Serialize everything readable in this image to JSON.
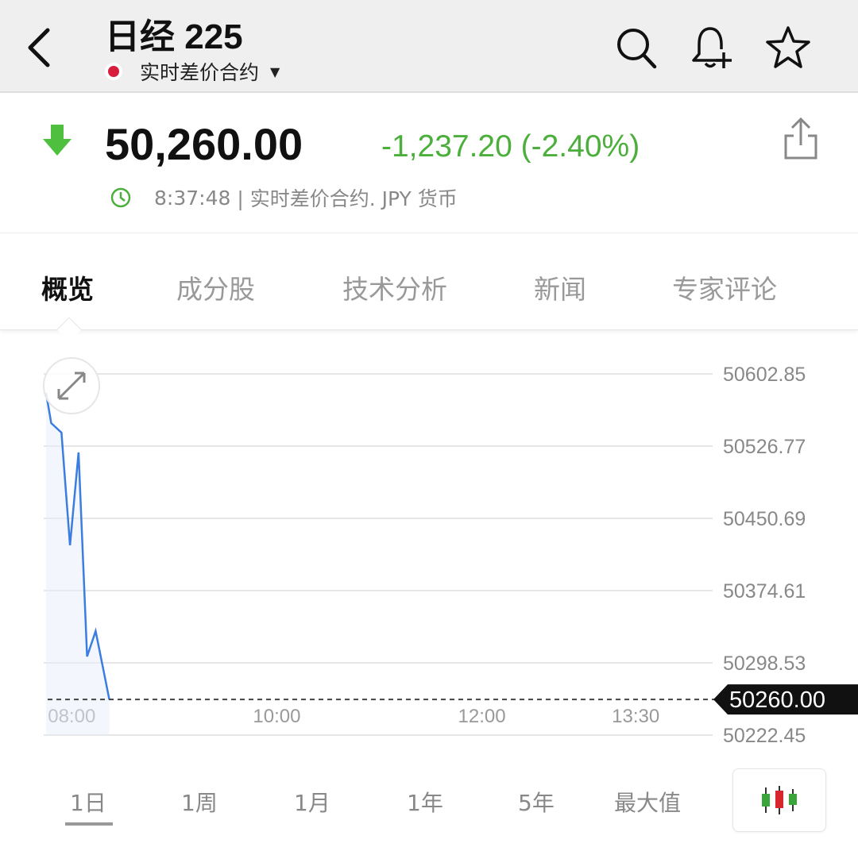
{
  "header": {
    "title": "日经 225",
    "subtitle": "实时差价合约",
    "back_icon": "chevron-left-icon",
    "icons": [
      "search-icon",
      "bell-plus-icon",
      "star-icon"
    ]
  },
  "quote": {
    "price": "50,260.00",
    "change": "-1,237.20 (-2.40%)",
    "direction": "down",
    "meta_time": "8:37:48",
    "meta_text": "| 实时差价合约. JPY 货币",
    "up_down_color": "#4caf3c"
  },
  "tabs": [
    {
      "label": "概览",
      "active": true
    },
    {
      "label": "成分股"
    },
    {
      "label": "技术分析"
    },
    {
      "label": "新闻"
    },
    {
      "label": "专家评论"
    }
  ],
  "chart_data": {
    "type": "line",
    "x": [
      "07:45",
      "07:48",
      "07:54",
      "07:59",
      "08:04",
      "08:09",
      "08:14",
      "08:22"
    ],
    "values": [
      50582.8,
      50551.0,
      50541.0,
      50422.3,
      50520.1,
      50305.2,
      50332.0,
      50260.0
    ],
    "xlim": [
      "07:45",
      "14:15"
    ],
    "ylim": [
      50222.45,
      50602.85
    ],
    "yticks": [
      "50602.85",
      "50526.77",
      "50450.69",
      "50374.61",
      "50298.53",
      "50222.45"
    ],
    "xticks": [
      {
        "label": "08:00",
        "t": "08:00"
      },
      {
        "label": "10:00",
        "t": "10:00"
      },
      {
        "label": "12:00",
        "t": "12:00"
      },
      {
        "label": "13:30",
        "t": "13:30"
      }
    ],
    "current_label": "50260.00",
    "current_value": 50260.0,
    "line_color": "#3b7de0",
    "grid": true
  },
  "ranges": [
    {
      "label": "1日",
      "active": true
    },
    {
      "label": "1周"
    },
    {
      "label": "1月"
    },
    {
      "label": "1年"
    },
    {
      "label": "5年"
    },
    {
      "label": "最大值"
    }
  ]
}
